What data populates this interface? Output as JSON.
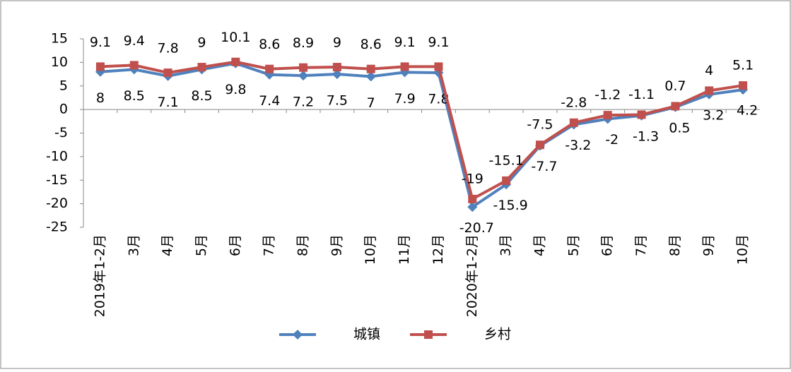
{
  "chart_data": {
    "type": "line",
    "categories": [
      "2019年1-2月",
      "3月",
      "4月",
      "5月",
      "6月",
      "7月",
      "8月",
      "9月",
      "10月",
      "11月",
      "12月",
      "2020年1-2月",
      "3月",
      "4月",
      "5月",
      "6月",
      "7月",
      "8月",
      "9月",
      "10月"
    ],
    "series": [
      {
        "name": "城镇",
        "color": "#4f81bd",
        "values": [
          8,
          8.5,
          7.1,
          8.5,
          9.8,
          7.4,
          7.2,
          7.5,
          7,
          7.9,
          7.8,
          -20.7,
          -15.9,
          -7.7,
          -3.2,
          -2,
          -1.3,
          0.5,
          3.2,
          4.2
        ]
      },
      {
        "name": "乡村",
        "color": "#c0504d",
        "values": [
          9.1,
          9.4,
          7.8,
          9,
          10.1,
          8.6,
          8.9,
          9,
          8.6,
          9.1,
          9.1,
          -19,
          -15.1,
          -7.5,
          -2.8,
          -1.2,
          -1.1,
          0.7,
          4,
          5.1
        ]
      }
    ],
    "ylim": [
      -25,
      15
    ],
    "yticks": [
      -25,
      -20,
      -15,
      -10,
      -5,
      0,
      5,
      10,
      15
    ],
    "legend": "bottom"
  }
}
